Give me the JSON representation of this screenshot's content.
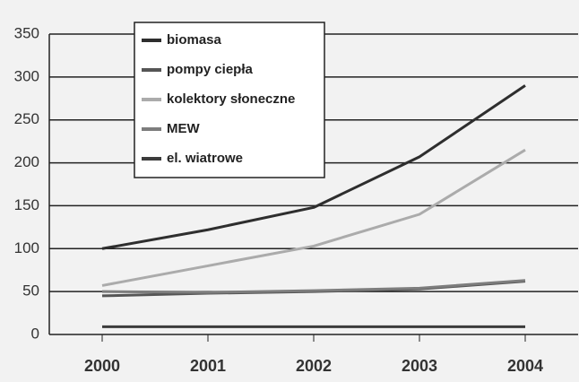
{
  "chart_data": {
    "type": "line",
    "categories": [
      "2000",
      "2001",
      "2002",
      "2003",
      "2004"
    ],
    "series": [
      {
        "name": "biomasa",
        "color": "#2e2e2e",
        "values": [
          100,
          122,
          148,
          207,
          290
        ]
      },
      {
        "name": "pompy ciepła",
        "color": "#555555",
        "values": [
          45,
          48,
          50,
          53,
          62
        ]
      },
      {
        "name": "kolektory słoneczne",
        "color": "#ababab",
        "values": [
          57,
          80,
          103,
          140,
          215
        ]
      },
      {
        "name": "MEW",
        "color": "#7d7d7d",
        "values": [
          50,
          49,
          51,
          54,
          63
        ]
      },
      {
        "name": "el. wiatrowe",
        "color": "#3c3c3c",
        "values": [
          9,
          9,
          9,
          9,
          9
        ]
      }
    ],
    "ylim": [
      0,
      350
    ],
    "yticks": [
      0,
      50,
      100,
      150,
      200,
      250,
      300,
      350
    ],
    "grid": true
  }
}
